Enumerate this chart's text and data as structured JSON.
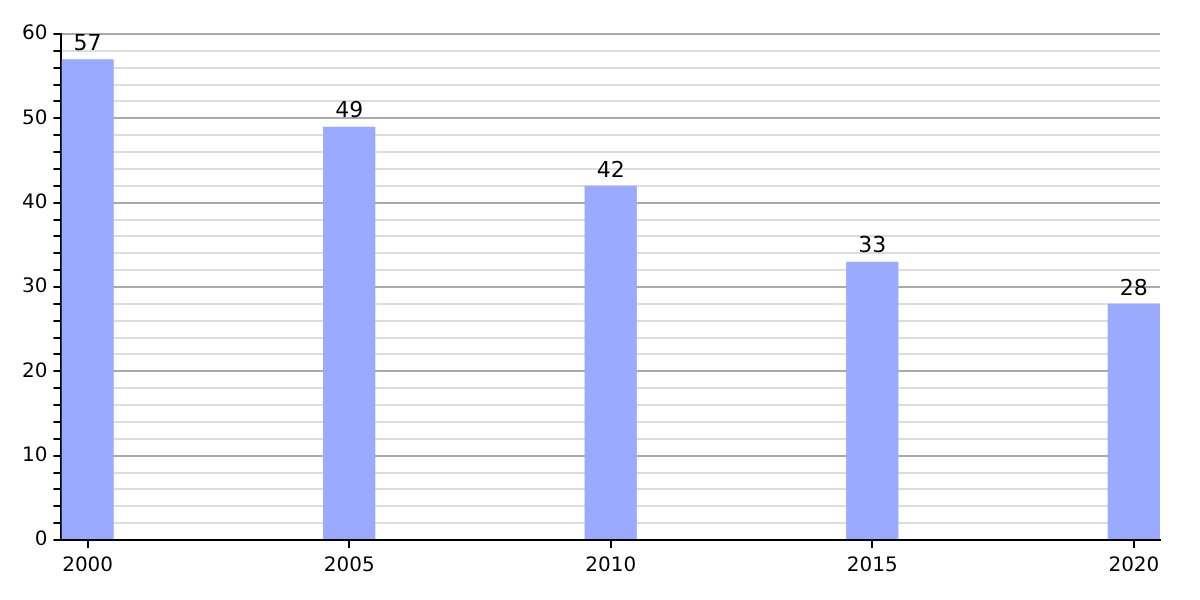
{
  "chart_data": {
    "type": "bar",
    "x": [
      2000,
      2005,
      2010,
      2015,
      2020
    ],
    "values": [
      57,
      49,
      42,
      33,
      28
    ],
    "color": "#99aaff",
    "xlim": [
      1999.5,
      2020.5
    ],
    "xticks": [
      2000,
      2005,
      2010,
      2015,
      2020
    ],
    "ylim": [
      0,
      60
    ],
    "yticks": [
      0,
      {
        "value": 2,
        "label": null
      },
      {
        "value": 4,
        "label": null
      },
      {
        "value": 6,
        "label": null
      },
      {
        "value": 8,
        "label": null
      },
      10,
      {
        "value": 12,
        "label": null
      },
      {
        "value": 14,
        "label": null
      },
      {
        "value": 16,
        "label": null
      },
      {
        "value": 18,
        "label": null
      },
      20,
      {
        "value": 22,
        "label": null
      },
      {
        "value": 24,
        "label": null
      },
      {
        "value": 26,
        "label": null
      },
      {
        "value": 28,
        "label": null
      },
      30,
      {
        "value": 32,
        "label": null
      },
      {
        "value": 34,
        "label": null
      },
      {
        "value": 36,
        "label": null
      },
      {
        "value": 38,
        "label": null
      },
      40,
      {
        "value": 42,
        "label": null
      },
      {
        "value": 44,
        "label": null
      },
      {
        "value": 46,
        "label": null
      },
      {
        "value": 48,
        "label": null
      },
      50,
      {
        "value": 52,
        "label": null
      },
      {
        "value": 54,
        "label": null
      },
      {
        "value": 56,
        "label": null
      },
      {
        "value": 58,
        "label": null
      },
      60
    ],
    "grid": "y",
    "data_labels": true
  }
}
